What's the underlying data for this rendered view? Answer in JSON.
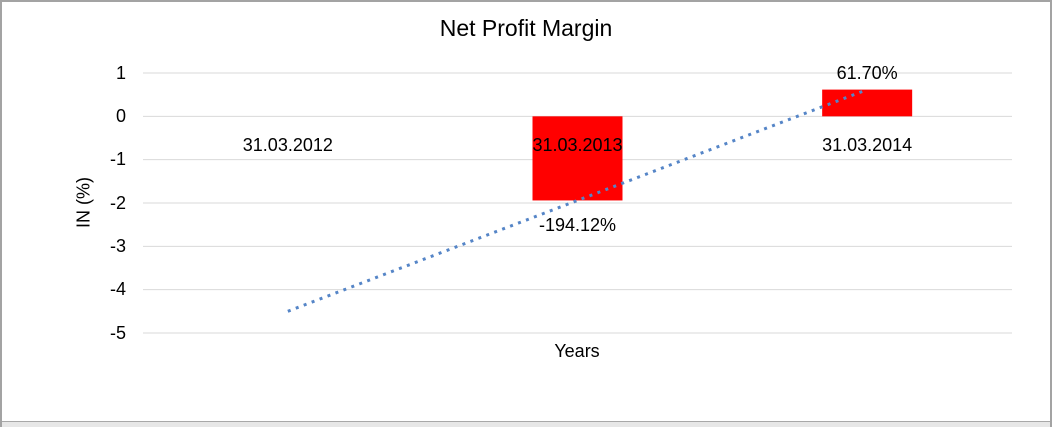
{
  "chart_data": {
    "type": "bar",
    "title": "Net Profit Margin",
    "xlabel": "Years",
    "ylabel": "IN (%)",
    "categories": [
      "31.03.2012",
      "31.03.2013",
      "31.03.2014"
    ],
    "series": [
      {
        "name": "Net Profit Margin",
        "values": [
          null,
          -1.9412,
          0.617
        ],
        "data_labels": [
          "",
          "-194.12%",
          "61.70%"
        ]
      }
    ],
    "ylim": [
      -5,
      1
    ],
    "yticks": [
      "1",
      "0",
      "-1",
      "-2",
      "-3",
      "-4",
      "-5"
    ],
    "ytick_values": [
      1,
      0,
      -1,
      -2,
      -3,
      -4,
      -5
    ],
    "grid": true,
    "legend": "none",
    "trendline": {
      "type": "linear",
      "style": "dotted",
      "points": [
        {
          "category": "31.03.2012",
          "value": -4.4994
        },
        {
          "category": "31.03.2014",
          "value": 0.617
        }
      ]
    },
    "colors": {
      "bar": "#ff0000",
      "trendline": "#5585c7",
      "gridline": "#d9d9d9",
      "text": "#000000",
      "frame_border": "#a3a3a3",
      "bottom_strip": "#e7e7e7"
    }
  }
}
